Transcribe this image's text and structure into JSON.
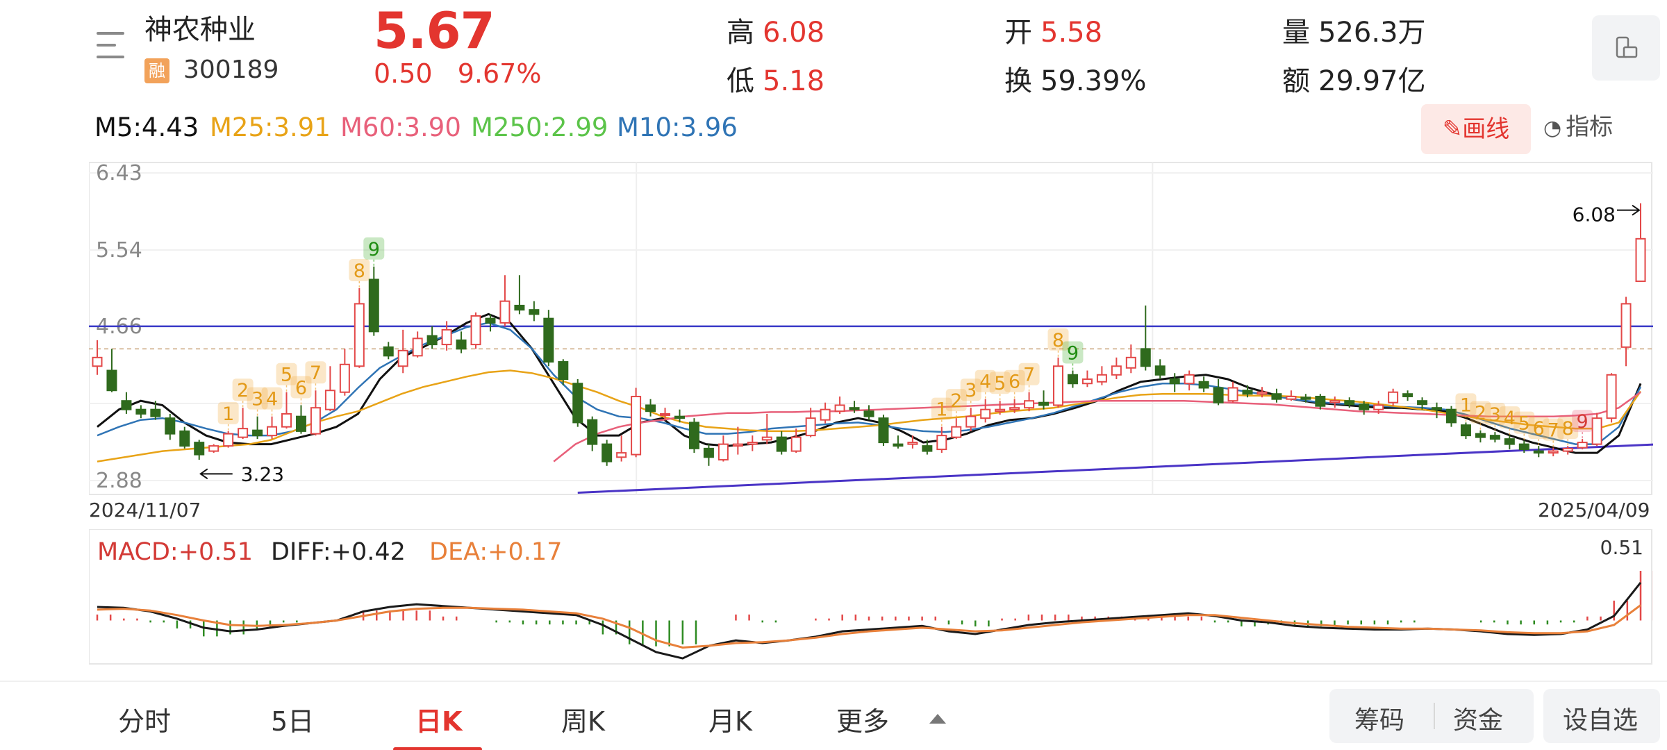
{
  "header": {
    "name": "神农种业",
    "badge": "融",
    "code": "300189",
    "price": "5.67",
    "change": "0.50",
    "change_pct": "9.67%",
    "stats": [
      {
        "label": "高",
        "value": "6.08",
        "color": "red"
      },
      {
        "label": "低",
        "value": "5.18",
        "color": "red"
      },
      {
        "label": "开",
        "value": "5.58",
        "color": "red"
      },
      {
        "label": "换",
        "value": "59.39%",
        "color": "dark"
      },
      {
        "label": "量",
        "value": "526.3万",
        "color": "dark"
      },
      {
        "label": "额",
        "value": "29.97亿",
        "color": "dark"
      }
    ]
  },
  "ma_legend": [
    {
      "text": "M5:4.43",
      "color": "#111111"
    },
    {
      "text": "M25:3.91",
      "color": "#e8a317"
    },
    {
      "text": "M60:3.90",
      "color": "#e8607a"
    },
    {
      "text": "M250:2.99",
      "color": "#5cc44a"
    },
    {
      "text": "M10:3.96",
      "color": "#2f74b5"
    }
  ],
  "tools": {
    "draw": "画线",
    "indicator": "指标"
  },
  "chart_data": {
    "type": "candlestick",
    "y_ticks": [
      "6.43",
      "5.54",
      "4.66",
      "2.88"
    ],
    "ylim": [
      2.88,
      6.43
    ],
    "start_date": "2024/11/07",
    "end_date": "2025/04/09",
    "high_marker": "6.08",
    "low_marker": "3.23",
    "candles": [
      [
        4.2,
        4.3,
        4.5,
        4.1
      ],
      [
        4.15,
        3.92,
        4.4,
        3.9
      ],
      [
        3.8,
        3.7,
        3.9,
        3.65
      ],
      [
        3.7,
        3.65,
        3.75,
        3.6
      ],
      [
        3.7,
        3.62,
        3.8,
        3.58
      ],
      [
        3.6,
        3.42,
        3.65,
        3.35
      ],
      [
        3.45,
        3.28,
        3.5,
        3.25
      ],
      [
        3.32,
        3.18,
        3.35,
        3.12
      ],
      [
        3.22,
        3.28,
        3.3,
        3.2
      ],
      [
        3.28,
        3.42,
        3.45,
        3.26
      ],
      [
        3.38,
        3.48,
        3.72,
        3.36
      ],
      [
        3.46,
        3.4,
        3.62,
        3.36
      ],
      [
        3.4,
        3.5,
        3.62,
        3.36
      ],
      [
        3.5,
        3.65,
        3.9,
        3.48
      ],
      [
        3.62,
        3.45,
        3.75,
        3.42
      ],
      [
        3.42,
        3.72,
        3.92,
        3.4
      ],
      [
        3.7,
        3.92,
        4.2,
        3.68
      ],
      [
        3.9,
        4.22,
        4.4,
        3.86
      ],
      [
        4.2,
        4.92,
        5.1,
        4.18
      ],
      [
        5.2,
        4.6,
        5.35,
        4.55
      ],
      [
        4.42,
        4.32,
        4.48,
        4.28
      ],
      [
        4.2,
        4.38,
        4.62,
        4.12
      ],
      [
        4.32,
        4.52,
        4.6,
        4.3
      ],
      [
        4.55,
        4.45,
        4.66,
        4.4
      ],
      [
        4.45,
        4.62,
        4.72,
        4.38
      ],
      [
        4.5,
        4.4,
        4.6,
        4.35
      ],
      [
        4.45,
        4.78,
        4.82,
        4.4
      ],
      [
        4.75,
        4.7,
        4.8,
        4.6
      ],
      [
        4.7,
        4.95,
        5.25,
        4.66
      ],
      [
        4.9,
        4.85,
        5.25,
        4.8
      ],
      [
        4.85,
        4.8,
        4.95,
        4.72
      ],
      [
        4.75,
        4.25,
        4.85,
        4.2
      ],
      [
        4.25,
        4.05,
        4.28,
        3.98
      ],
      [
        4.0,
        3.55,
        4.05,
        3.5
      ],
      [
        3.58,
        3.3,
        3.62,
        3.22
      ],
      [
        3.3,
        3.1,
        3.35,
        3.05
      ],
      [
        3.15,
        3.2,
        3.4,
        3.1
      ],
      [
        3.18,
        3.85,
        3.95,
        3.15
      ],
      [
        3.75,
        3.68,
        3.82,
        3.62
      ],
      [
        3.65,
        3.65,
        3.72,
        3.58
      ],
      [
        3.62,
        3.6,
        3.7,
        3.55
      ],
      [
        3.55,
        3.25,
        3.6,
        3.2
      ],
      [
        3.25,
        3.15,
        3.3,
        3.05
      ],
      [
        3.12,
        3.3,
        3.4,
        3.1
      ],
      [
        3.28,
        3.3,
        3.5,
        3.18
      ],
      [
        3.3,
        3.32,
        3.4,
        3.22
      ],
      [
        3.35,
        3.38,
        3.65,
        3.3
      ],
      [
        3.38,
        3.22,
        3.45,
        3.18
      ],
      [
        3.22,
        3.38,
        3.48,
        3.2
      ],
      [
        3.4,
        3.6,
        3.72,
        3.38
      ],
      [
        3.58,
        3.7,
        3.78,
        3.54
      ],
      [
        3.68,
        3.75,
        3.85,
        3.65
      ],
      [
        3.72,
        3.7,
        3.8,
        3.66
      ],
      [
        3.68,
        3.62,
        3.75,
        3.58
      ],
      [
        3.6,
        3.32,
        3.64,
        3.28
      ],
      [
        3.3,
        3.28,
        3.4,
        3.25
      ],
      [
        3.3,
        3.32,
        3.4,
        3.25
      ],
      [
        3.28,
        3.22,
        3.35,
        3.18
      ],
      [
        3.24,
        3.4,
        3.5,
        3.2
      ],
      [
        3.38,
        3.5,
        3.6,
        3.36
      ],
      [
        3.5,
        3.62,
        3.72,
        3.45
      ],
      [
        3.6,
        3.7,
        3.82,
        3.55
      ],
      [
        3.68,
        3.7,
        3.8,
        3.64
      ],
      [
        3.7,
        3.72,
        3.82,
        3.66
      ],
      [
        3.72,
        3.8,
        3.9,
        3.68
      ],
      [
        3.78,
        3.75,
        3.92,
        3.7
      ],
      [
        3.75,
        4.2,
        4.3,
        3.72
      ],
      [
        4.1,
        4.0,
        4.15,
        3.95
      ],
      [
        4.0,
        4.05,
        4.15,
        3.96
      ],
      [
        4.02,
        4.1,
        4.2,
        3.98
      ],
      [
        4.1,
        4.2,
        4.3,
        4.05
      ],
      [
        4.18,
        4.3,
        4.45,
        4.12
      ],
      [
        4.4,
        4.2,
        4.9,
        4.15
      ],
      [
        4.2,
        4.1,
        4.28,
        4.05
      ],
      [
        4.05,
        4.0,
        4.12,
        3.9
      ],
      [
        4.0,
        4.1,
        4.15,
        3.92
      ],
      [
        4.02,
        3.95,
        4.08,
        3.9
      ],
      [
        3.95,
        3.78,
        4.05,
        3.75
      ],
      [
        3.8,
        3.95,
        4.02,
        3.78
      ],
      [
        3.92,
        3.88,
        3.98,
        3.84
      ],
      [
        3.88,
        3.9,
        3.96,
        3.84
      ],
      [
        3.88,
        3.82,
        3.94,
        3.78
      ],
      [
        3.82,
        3.85,
        3.92,
        3.8
      ],
      [
        3.84,
        3.82,
        3.88,
        3.78
      ],
      [
        3.85,
        3.74,
        3.88,
        3.7
      ],
      [
        3.78,
        3.8,
        3.85,
        3.72
      ],
      [
        3.8,
        3.76,
        3.84,
        3.72
      ],
      [
        3.76,
        3.7,
        3.8,
        3.64
      ],
      [
        3.7,
        3.75,
        3.8,
        3.65
      ],
      [
        3.78,
        3.9,
        3.94,
        3.74
      ],
      [
        3.88,
        3.85,
        3.92,
        3.8
      ],
      [
        3.8,
        3.76,
        3.84,
        3.7
      ],
      [
        3.72,
        3.7,
        3.78,
        3.6
      ],
      [
        3.7,
        3.55,
        3.74,
        3.5
      ],
      [
        3.52,
        3.4,
        3.55,
        3.36
      ],
      [
        3.42,
        3.38,
        3.46,
        3.32
      ],
      [
        3.4,
        3.36,
        3.44,
        3.32
      ],
      [
        3.36,
        3.3,
        3.4,
        3.24
      ],
      [
        3.3,
        3.24,
        3.34,
        3.2
      ],
      [
        3.22,
        3.2,
        3.28,
        3.15
      ],
      [
        3.2,
        3.22,
        3.26,
        3.16
      ],
      [
        3.22,
        3.25,
        3.28,
        3.18
      ],
      [
        3.26,
        3.32,
        3.36,
        3.24
      ],
      [
        3.3,
        3.6,
        3.66,
        3.28
      ],
      [
        3.6,
        4.1,
        4.12,
        3.55
      ],
      [
        4.42,
        4.92,
        5.0,
        4.2
      ],
      [
        5.18,
        5.67,
        6.08,
        5.18
      ]
    ],
    "series": [
      {
        "name": "M5",
        "color": "#111111",
        "values": [
          3.5,
          3.7,
          3.8,
          3.75,
          3.55,
          3.4,
          3.32,
          3.3,
          3.3,
          3.36,
          3.42,
          3.5,
          3.65,
          4.05,
          4.3,
          4.42,
          4.55,
          4.7,
          4.8,
          4.7,
          4.4,
          4.0,
          3.6,
          3.4,
          3.4,
          3.55,
          3.6,
          3.4,
          3.3,
          3.28,
          3.3,
          3.32,
          3.38,
          3.45,
          3.55,
          3.6,
          3.55,
          3.45,
          3.32,
          3.35,
          3.42,
          3.52,
          3.58,
          3.6,
          3.65,
          3.72,
          3.8,
          3.92,
          4.02,
          4.05,
          4.08,
          4.1,
          4.05,
          3.95,
          3.88,
          3.82,
          3.78,
          3.76,
          3.74,
          3.72,
          3.72,
          3.7,
          3.68,
          3.6,
          3.5,
          3.4,
          3.32,
          3.26,
          3.2,
          3.2,
          3.4,
          4.0
        ]
      },
      {
        "name": "M10",
        "color": "#2f74b5",
        "values": [
          3.4,
          3.5,
          3.58,
          3.6,
          3.55,
          3.48,
          3.42,
          3.4,
          3.4,
          3.45,
          3.55,
          3.7,
          3.95,
          4.18,
          4.32,
          4.45,
          4.55,
          4.65,
          4.7,
          4.62,
          4.4,
          4.1,
          3.85,
          3.7,
          3.62,
          3.6,
          3.55,
          3.48,
          3.42,
          3.42,
          3.44,
          3.48,
          3.5,
          3.52,
          3.54,
          3.55,
          3.52,
          3.48,
          3.45,
          3.44,
          3.46,
          3.5,
          3.55,
          3.6,
          3.66,
          3.74,
          3.82,
          3.9,
          3.96,
          4.0,
          4.0,
          3.98,
          3.94,
          3.9,
          3.86,
          3.82,
          3.79,
          3.77,
          3.76,
          3.74,
          3.73,
          3.72,
          3.7,
          3.64,
          3.56,
          3.48,
          3.42,
          3.36,
          3.3,
          3.3,
          3.5,
          3.96
        ]
      },
      {
        "name": "M25",
        "color": "#e8a317",
        "values": [
          3.1,
          3.14,
          3.18,
          3.22,
          3.24,
          3.26,
          3.28,
          3.3,
          3.35,
          3.45,
          3.55,
          3.62,
          3.68,
          3.78,
          3.88,
          3.96,
          4.02,
          4.08,
          4.13,
          4.15,
          4.12,
          4.06,
          3.98,
          3.9,
          3.8,
          3.72,
          3.62,
          3.55,
          3.5,
          3.48,
          3.46,
          3.45,
          3.45,
          3.46,
          3.48,
          3.5,
          3.52,
          3.55,
          3.58,
          3.6,
          3.62,
          3.65,
          3.68,
          3.7,
          3.72,
          3.76,
          3.8,
          3.84,
          3.87,
          3.88,
          3.88,
          3.88,
          3.87,
          3.86,
          3.86,
          3.85,
          3.83,
          3.81,
          3.79,
          3.76,
          3.73,
          3.7,
          3.66,
          3.62,
          3.58,
          3.55,
          3.52,
          3.5,
          3.48,
          3.48,
          3.55,
          3.91
        ]
      },
      {
        "name": "M60",
        "color": "#e8607a",
        "values": [
          null,
          null,
          null,
          null,
          null,
          null,
          null,
          null,
          null,
          null,
          null,
          null,
          null,
          null,
          null,
          null,
          null,
          null,
          null,
          null,
          null,
          3.1,
          3.3,
          3.42,
          3.5,
          3.55,
          3.58,
          3.62,
          3.64,
          3.66,
          3.66,
          3.67,
          3.67,
          3.68,
          3.68,
          3.69,
          3.7,
          3.71,
          3.72,
          3.73,
          3.74,
          3.75,
          3.76,
          3.77,
          3.78,
          3.79,
          3.8,
          3.8,
          3.8,
          3.8,
          3.8,
          3.79,
          3.78,
          3.77,
          3.76,
          3.74,
          3.72,
          3.7,
          3.68,
          3.67,
          3.66,
          3.65,
          3.64,
          3.63,
          3.62,
          3.62,
          3.62,
          3.62,
          3.63,
          3.65,
          3.72,
          3.9
        ]
      }
    ],
    "td_markers": [
      {
        "i": 9,
        "label": "1",
        "color": "#f2a93b"
      },
      {
        "i": 10,
        "label": "2",
        "color": "#f2a93b"
      },
      {
        "i": 11,
        "label": "3",
        "color": "#f2a93b"
      },
      {
        "i": 12,
        "label": "4",
        "color": "#f2a93b"
      },
      {
        "i": 13,
        "label": "5",
        "color": "#f2a93b"
      },
      {
        "i": 14,
        "label": "6",
        "color": "#f2a93b"
      },
      {
        "i": 15,
        "label": "7",
        "color": "#f2a93b"
      },
      {
        "i": 18,
        "label": "8",
        "color": "#f2a93b"
      },
      {
        "i": 19,
        "label": "9",
        "color": "#3fae2a"
      },
      {
        "i": 58,
        "label": "1",
        "color": "#f2a93b"
      },
      {
        "i": 59,
        "label": "2",
        "color": "#f2a93b"
      },
      {
        "i": 60,
        "label": "3",
        "color": "#f2a93b"
      },
      {
        "i": 61,
        "label": "4",
        "color": "#f2a93b"
      },
      {
        "i": 62,
        "label": "5",
        "color": "#f2a93b"
      },
      {
        "i": 63,
        "label": "6",
        "color": "#f2a93b"
      },
      {
        "i": 64,
        "label": "7",
        "color": "#f2a93b"
      },
      {
        "i": 66,
        "label": "8",
        "color": "#f2a93b"
      },
      {
        "i": 67,
        "label": "9",
        "color": "#3fae2a"
      },
      {
        "i": 94,
        "label": "1",
        "color": "#f2a93b"
      },
      {
        "i": 95,
        "label": "2",
        "color": "#f2a93b"
      },
      {
        "i": 96,
        "label": "3",
        "color": "#f2a93b"
      },
      {
        "i": 97,
        "label": "4",
        "color": "#f2a93b"
      },
      {
        "i": 98,
        "label": "5",
        "color": "#f2a93b"
      },
      {
        "i": 99,
        "label": "6",
        "color": "#f2a93b"
      },
      {
        "i": 100,
        "label": "7",
        "color": "#f2a93b"
      },
      {
        "i": 101,
        "label": "8",
        "color": "#f2a93b"
      },
      {
        "i": 102,
        "label": "9",
        "color": "#e8607a"
      }
    ],
    "hline": 4.66,
    "hline_dashed": 4.4,
    "trendline": {
      "from": [
        2.74,
        33
      ],
      "to": [
        3.32,
        110
      ]
    },
    "macd": {
      "legend": [
        {
          "text": "MACD:+0.51",
          "color": "#d33a36"
        },
        {
          "text": "DIFF:+0.42",
          "color": "#222222"
        },
        {
          "text": "DEA:+0.17",
          "color": "#e8803a"
        }
      ],
      "top_label": "0.51",
      "ylim": [
        -0.45,
        0.55
      ],
      "diff": [
        0.15,
        0.14,
        0.1,
        0.02,
        -0.08,
        -0.12,
        -0.1,
        -0.06,
        -0.03,
        0.0,
        0.1,
        0.15,
        0.18,
        0.16,
        0.14,
        0.12,
        0.1,
        0.08,
        0.06,
        -0.05,
        -0.2,
        -0.35,
        -0.42,
        -0.28,
        -0.22,
        -0.25,
        -0.22,
        -0.18,
        -0.12,
        -0.1,
        -0.08,
        -0.06,
        -0.12,
        -0.15,
        -0.1,
        -0.05,
        -0.02,
        0.0,
        0.02,
        0.04,
        0.06,
        0.08,
        0.05,
        0.0,
        -0.02,
        -0.06,
        -0.08,
        -0.09,
        -0.1,
        -0.1,
        -0.09,
        -0.1,
        -0.12,
        -0.15,
        -0.16,
        -0.15,
        -0.1,
        0.05,
        0.42
      ],
      "dea": [
        0.12,
        0.13,
        0.11,
        0.06,
        0.0,
        -0.05,
        -0.06,
        -0.05,
        -0.03,
        0.0,
        0.05,
        0.1,
        0.13,
        0.14,
        0.14,
        0.13,
        0.12,
        0.1,
        0.08,
        0.02,
        -0.08,
        -0.22,
        -0.3,
        -0.28,
        -0.25,
        -0.24,
        -0.22,
        -0.19,
        -0.15,
        -0.12,
        -0.1,
        -0.08,
        -0.1,
        -0.12,
        -0.11,
        -0.08,
        -0.05,
        -0.02,
        0.0,
        0.02,
        0.04,
        0.06,
        0.06,
        0.03,
        0.0,
        -0.03,
        -0.05,
        -0.07,
        -0.08,
        -0.09,
        -0.09,
        -0.1,
        -0.11,
        -0.13,
        -0.14,
        -0.14,
        -0.12,
        -0.05,
        0.17
      ]
    }
  },
  "dates": {
    "start": "2024/11/07",
    "end": "2025/04/09"
  },
  "tabs": [
    "分时",
    "5日",
    "日K",
    "周K",
    "月K",
    "更多"
  ],
  "active_tab": 2,
  "actions": {
    "chips": "筹码",
    "funds": "资金",
    "watchlist": "设自选"
  }
}
